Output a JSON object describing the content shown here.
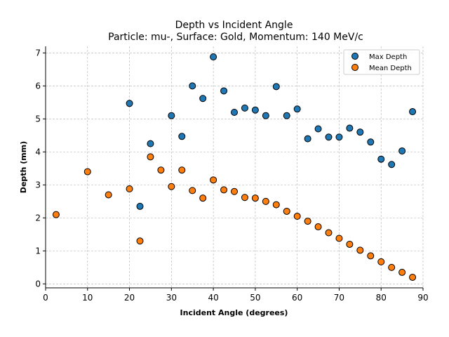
{
  "chart_data": {
    "type": "scatter",
    "title": "Depth vs Incident Angle",
    "subtitle": "Particle: mu-, Surface: Gold, Momentum: 140 MeV/c",
    "xlabel": "Incident Angle (degrees)",
    "ylabel": "Depth (mm)",
    "xlim": [
      0,
      90
    ],
    "ylim": [
      -0.12,
      7.2
    ],
    "xticks": [
      0,
      10,
      20,
      30,
      40,
      50,
      60,
      70,
      80,
      90
    ],
    "yticks": [
      0,
      1,
      2,
      3,
      4,
      5,
      6,
      7
    ],
    "grid": true,
    "legend_position": "top-right",
    "series": [
      {
        "name": "Max Depth",
        "color": "#1f77b4",
        "x": [
          20,
          22.5,
          25,
          30,
          32.5,
          35,
          37.5,
          40,
          42.5,
          45,
          47.5,
          50,
          52.5,
          55,
          57.5,
          60,
          62.5,
          65,
          67.5,
          70,
          72.5,
          75,
          77.5,
          80,
          82.5,
          85,
          87.5
        ],
        "y": [
          5.47,
          2.35,
          4.25,
          5.1,
          4.47,
          6.0,
          5.62,
          6.88,
          5.85,
          5.2,
          5.33,
          5.27,
          5.1,
          5.98,
          5.1,
          5.3,
          4.4,
          4.7,
          4.45,
          4.45,
          4.72,
          4.6,
          4.3,
          3.78,
          3.62,
          4.03,
          5.22
        ]
      },
      {
        "name": "Mean Depth",
        "color": "#ff7f0e",
        "x": [
          2.5,
          10,
          15,
          20,
          22.5,
          25,
          27.5,
          30,
          32.5,
          35,
          37.5,
          40,
          42.5,
          45,
          47.5,
          50,
          52.5,
          55,
          57.5,
          60,
          62.5,
          65,
          67.5,
          70,
          72.5,
          75,
          77.5,
          80,
          82.5,
          85,
          87.5
        ],
        "y": [
          2.1,
          3.4,
          2.7,
          2.88,
          1.3,
          3.85,
          3.45,
          2.95,
          3.45,
          2.83,
          2.6,
          3.15,
          2.85,
          2.8,
          2.62,
          2.6,
          2.5,
          2.4,
          2.2,
          2.05,
          1.9,
          1.73,
          1.55,
          1.38,
          1.2,
          1.02,
          0.85,
          0.67,
          0.5,
          0.35,
          0.2
        ]
      }
    ]
  }
}
